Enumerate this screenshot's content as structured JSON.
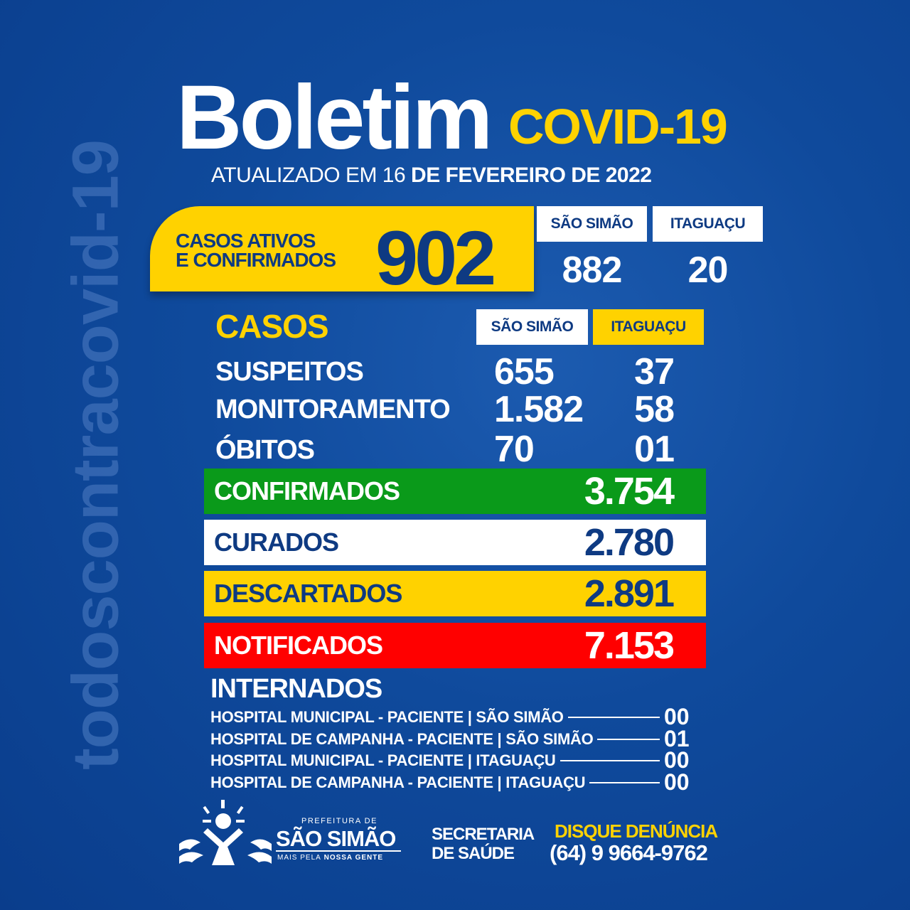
{
  "watermark": "todoscontracovid-19",
  "header": {
    "title": "Boletim",
    "subtitle_badge": "COVID-19",
    "updated_prefix": "ATUALIZADO EM 16",
    "updated_date": "DE FEVEREIRO DE 2022"
  },
  "active": {
    "label_line1": "CASOS ATIVOS",
    "label_line2": "E CONFIRMADOS",
    "total": "902",
    "cities": [
      {
        "name": "SÃO SIMÃO",
        "value": "882"
      },
      {
        "name": "ITAGUAÇU",
        "value": "20"
      }
    ]
  },
  "casos": {
    "title": "CASOS",
    "columns": [
      "SÃO SIMÃO",
      "ITAGUAÇU"
    ],
    "rows": [
      {
        "label": "SUSPEITOS",
        "values": [
          "655",
          "37"
        ]
      },
      {
        "label": "MONITORAMENTO",
        "values": [
          "1.582",
          "58"
        ]
      },
      {
        "label": "ÓBITOS",
        "values": [
          "70",
          "01"
        ]
      }
    ]
  },
  "totals": [
    {
      "label": "CONFIRMADOS",
      "value": "3.754",
      "color": "#0a9a1a"
    },
    {
      "label": "CURADOS",
      "value": "2.780",
      "color": "#ffffff"
    },
    {
      "label": "DESCARTADOS",
      "value": "2.891",
      "color": "#ffd200"
    },
    {
      "label": "NOTIFICADOS",
      "value": "7.153",
      "color": "#ff0000"
    }
  ],
  "internados": {
    "title": "INTERNADOS",
    "items": [
      {
        "label": "HOSPITAL MUNICIPAL - PACIENTE | SÃO SIMÃO",
        "value": "00"
      },
      {
        "label": "HOSPITAL DE CAMPANHA - PACIENTE | SÃO SIMÃO",
        "value": "01"
      },
      {
        "label": "HOSPITAL MUNICIPAL - PACIENTE | ITAGUAÇU",
        "value": "00"
      },
      {
        "label": "HOSPITAL DE CAMPANHA - PACIENTE | ITAGUAÇU",
        "value": "00"
      }
    ]
  },
  "footer": {
    "logo_top": "PREFEITURA DE",
    "logo_name": "SÃO SIMÃO",
    "logo_slogan_a": "MAIS PELA",
    "logo_slogan_b": "NOSSA GENTE",
    "dept_line1": "SECRETARIA",
    "dept_line2": "DE SAÚDE",
    "hotline_label": "DISQUE DENÚNCIA",
    "hotline_number": "(64) 9 9664-9762"
  },
  "colors": {
    "background": "#0f4a9c",
    "yellow": "#ffd200",
    "navy": "#0e3a82"
  }
}
